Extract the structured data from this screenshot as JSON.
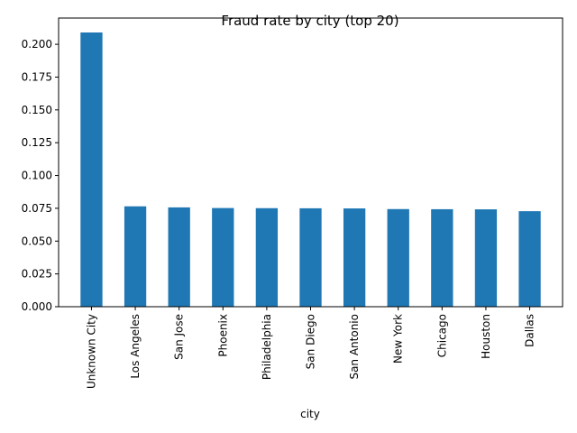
{
  "chart_data": {
    "type": "bar",
    "title": "Fraud rate by city (top 20)",
    "xlabel": "city",
    "ylabel": "",
    "categories": [
      "Unknown City",
      "Los Angeles",
      "San Jose",
      "Phoenix",
      "Philadelphia",
      "San Diego",
      "San Antonio",
      "New York",
      "Chicago",
      "Houston",
      "Dallas"
    ],
    "values": [
      0.209,
      0.0765,
      0.0757,
      0.0752,
      0.0751,
      0.075,
      0.0749,
      0.0744,
      0.0743,
      0.0742,
      0.0728
    ],
    "ylim": [
      0,
      0.22
    ],
    "yticks": [
      "0.000",
      "0.025",
      "0.050",
      "0.075",
      "0.100",
      "0.125",
      "0.150",
      "0.175",
      "0.200"
    ],
    "bar_color": "#1f77b4",
    "grid": false,
    "legend": "none"
  }
}
